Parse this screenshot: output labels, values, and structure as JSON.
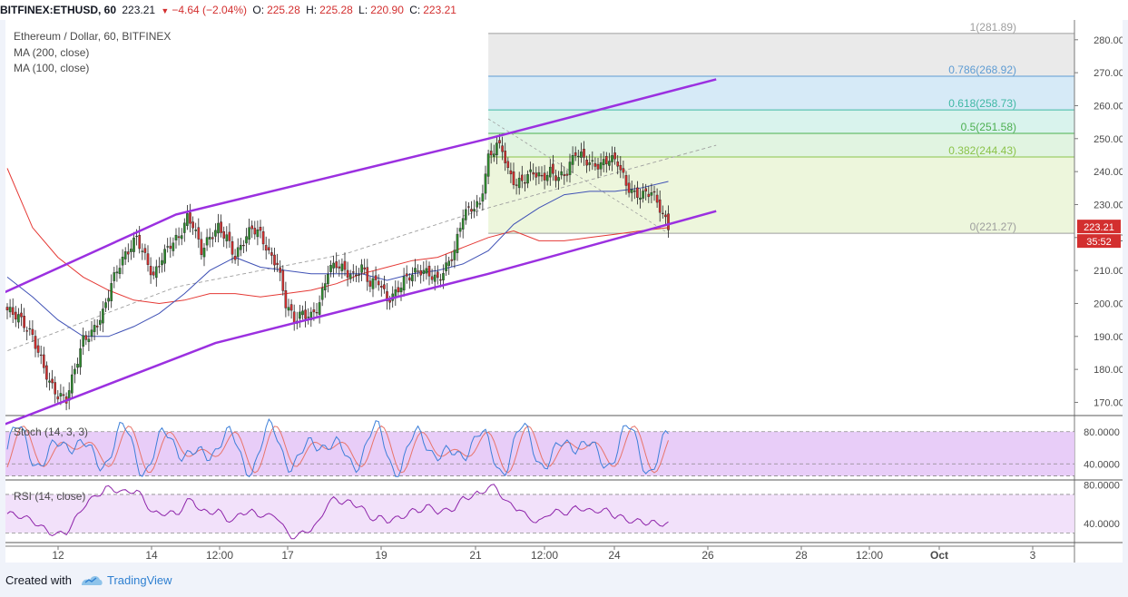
{
  "header": {
    "symbol": "BITFINEX:ETHUSD, 60",
    "last": "223.21",
    "change": "−4.64 (−2.04%)",
    "open_label": "O:",
    "open": "225.28",
    "high_label": "H:",
    "high": "225.28",
    "low_label": "L:",
    "low": "220.90",
    "close_label": "C:",
    "close": "223.21"
  },
  "legend": {
    "title": "Ethereum / Dollar, 60, BITFINEX",
    "ma200": "MA (200, close)",
    "ma100": "MA (100, close)",
    "stoch": "Stoch (14, 3, 3)",
    "rsi": "RSI (14, close)"
  },
  "price_badge": "223.21",
  "countdown_badge": "35:52",
  "footer": {
    "created_with": "Created with",
    "brand": "TradingView"
  },
  "colors": {
    "up": "#2e8b2e",
    "down": "#d32f2f",
    "channel": "#9b30e0",
    "ma200": "#e53935",
    "ma100": "#3f51b5",
    "stoch_k": "#3d7fd9",
    "stoch_d": "#e8746a",
    "rsi": "#8e24aa"
  },
  "chart_data": {
    "type": "candlestick",
    "price_axis": {
      "ticks": [
        170,
        180,
        190,
        200,
        210,
        220,
        230,
        240,
        250,
        260,
        270,
        280
      ],
      "labels": [
        "170.00",
        "180.00",
        "190.00",
        "200.00",
        "210.00",
        "220.00",
        "230.00",
        "240.00",
        "250.00",
        "260.00",
        "270.00",
        "280.00"
      ],
      "range": [
        166,
        286
      ]
    },
    "time_axis": {
      "labels": [
        "12",
        "14",
        "12:00",
        "17",
        "19",
        "21",
        "12:00",
        "24",
        "26",
        "28",
        "12:00",
        "Oct",
        "3"
      ]
    },
    "fibonacci": [
      {
        "level": "1",
        "price": 281.89,
        "label": "1(281.89)",
        "color": "#9e9e9e",
        "fill": "#e6e6e6"
      },
      {
        "level": "0.786",
        "price": 268.92,
        "label": "0.786(268.92)",
        "color": "#5e9cd3",
        "fill": "#cfe6f6"
      },
      {
        "level": "0.618",
        "price": 258.73,
        "label": "0.618(258.73)",
        "color": "#3fb8a4",
        "fill": "#d2f1ea"
      },
      {
        "level": "0.5",
        "price": 251.58,
        "label": "0.5(251.58)",
        "color": "#4caf50",
        "fill": "#dcf2dc"
      },
      {
        "level": "0.382",
        "price": 244.43,
        "label": "0.382(244.43)",
        "color": "#8bc34a",
        "fill": "#eaf5d6"
      },
      {
        "level": "0",
        "price": 221.27,
        "label": "0(221.27)",
        "color": "#9e9e9e",
        "fill": "#eaf5d6"
      }
    ],
    "close_path": [
      [
        0,
        198
      ],
      [
        4,
        196
      ],
      [
        9,
        190
      ],
      [
        12,
        183
      ],
      [
        15,
        176
      ],
      [
        18,
        172
      ],
      [
        21,
        171
      ],
      [
        24,
        180
      ],
      [
        27,
        189
      ],
      [
        30,
        191
      ],
      [
        34,
        197
      ],
      [
        37,
        206
      ],
      [
        40,
        212
      ],
      [
        43,
        216
      ],
      [
        46,
        220
      ],
      [
        49,
        214
      ],
      [
        52,
        208
      ],
      [
        55,
        214
      ],
      [
        58,
        218
      ],
      [
        61,
        220
      ],
      [
        64,
        226
      ],
      [
        66,
        224
      ],
      [
        69,
        216
      ],
      [
        72,
        220
      ],
      [
        75,
        223
      ],
      [
        78,
        220
      ],
      [
        81,
        214
      ],
      [
        84,
        219
      ],
      [
        87,
        223
      ],
      [
        90,
        221
      ],
      [
        93,
        215
      ],
      [
        96,
        212
      ],
      [
        99,
        200
      ],
      [
        102,
        195
      ],
      [
        105,
        197
      ],
      [
        108,
        196
      ],
      [
        111,
        200
      ],
      [
        114,
        210
      ],
      [
        117,
        212
      ],
      [
        120,
        210
      ],
      [
        123,
        208
      ],
      [
        126,
        211
      ],
      [
        129,
        206
      ],
      [
        132,
        207
      ],
      [
        135,
        201
      ],
      [
        138,
        203
      ],
      [
        141,
        207
      ],
      [
        144,
        209
      ],
      [
        147,
        210
      ],
      [
        150,
        209
      ],
      [
        153,
        207
      ],
      [
        156,
        211
      ],
      [
        159,
        216
      ],
      [
        162,
        227
      ],
      [
        165,
        229
      ],
      [
        168,
        230
      ],
      [
        171,
        244
      ],
      [
        174,
        248
      ],
      [
        176,
        247
      ],
      [
        178,
        240
      ],
      [
        181,
        236
      ],
      [
        184,
        238
      ],
      [
        187,
        240
      ],
      [
        190,
        238
      ],
      [
        193,
        240
      ],
      [
        196,
        238
      ],
      [
        199,
        240
      ],
      [
        202,
        246
      ],
      [
        205,
        244
      ],
      [
        208,
        242
      ],
      [
        211,
        242
      ],
      [
        214,
        244
      ],
      [
        217,
        243
      ],
      [
        220,
        236
      ],
      [
        223,
        233
      ],
      [
        226,
        233
      ],
      [
        229,
        234
      ],
      [
        232,
        229
      ],
      [
        235,
        223
      ]
    ],
    "ma200": [
      [
        0,
        241
      ],
      [
        9,
        223
      ],
      [
        18,
        214
      ],
      [
        27,
        208
      ],
      [
        36,
        204
      ],
      [
        45,
        201
      ],
      [
        54,
        200
      ],
      [
        63,
        201
      ],
      [
        72,
        203
      ],
      [
        81,
        203
      ],
      [
        90,
        202
      ],
      [
        99,
        203
      ],
      [
        108,
        204
      ],
      [
        117,
        206
      ],
      [
        126,
        209
      ],
      [
        135,
        211
      ],
      [
        144,
        213
      ],
      [
        153,
        214
      ],
      [
        162,
        217
      ],
      [
        171,
        220
      ],
      [
        180,
        222
      ],
      [
        189,
        219
      ],
      [
        198,
        219
      ],
      [
        207,
        220
      ],
      [
        216,
        221
      ],
      [
        225,
        222
      ],
      [
        235,
        223
      ]
    ],
    "ma100": [
      [
        0,
        208
      ],
      [
        9,
        202
      ],
      [
        18,
        195
      ],
      [
        27,
        190
      ],
      [
        36,
        190
      ],
      [
        45,
        193
      ],
      [
        54,
        197
      ],
      [
        63,
        203
      ],
      [
        72,
        210
      ],
      [
        81,
        214
      ],
      [
        90,
        211
      ],
      [
        99,
        210
      ],
      [
        108,
        209
      ],
      [
        117,
        209
      ],
      [
        126,
        209
      ],
      [
        135,
        207
      ],
      [
        144,
        209
      ],
      [
        153,
        210
      ],
      [
        162,
        212
      ],
      [
        171,
        216
      ],
      [
        180,
        224
      ],
      [
        189,
        229
      ],
      [
        198,
        233
      ],
      [
        207,
        234
      ],
      [
        216,
        234
      ],
      [
        225,
        235
      ],
      [
        235,
        237
      ]
    ],
    "channel_upper": [
      [
        -2,
        203
      ],
      [
        60,
        227
      ],
      [
        171,
        250
      ],
      [
        252,
        268
      ]
    ],
    "channel_lower": [
      [
        -2,
        163
      ],
      [
        74,
        188
      ],
      [
        171,
        209
      ],
      [
        252,
        228
      ]
    ],
    "channel_mid": [
      [
        -2,
        185
      ],
      [
        60,
        205
      ],
      [
        120,
        215
      ],
      [
        171,
        229
      ],
      [
        252,
        248
      ]
    ],
    "stoch": {
      "ticks": [
        80,
        40
      ],
      "labels": [
        "80.0000",
        "40.0000"
      ],
      "range": [
        20,
        100
      ]
    },
    "rsi": {
      "ticks": [
        80,
        40
      ],
      "labels": [
        "80.0000",
        "40.0000"
      ],
      "range": [
        20,
        85
      ]
    }
  }
}
